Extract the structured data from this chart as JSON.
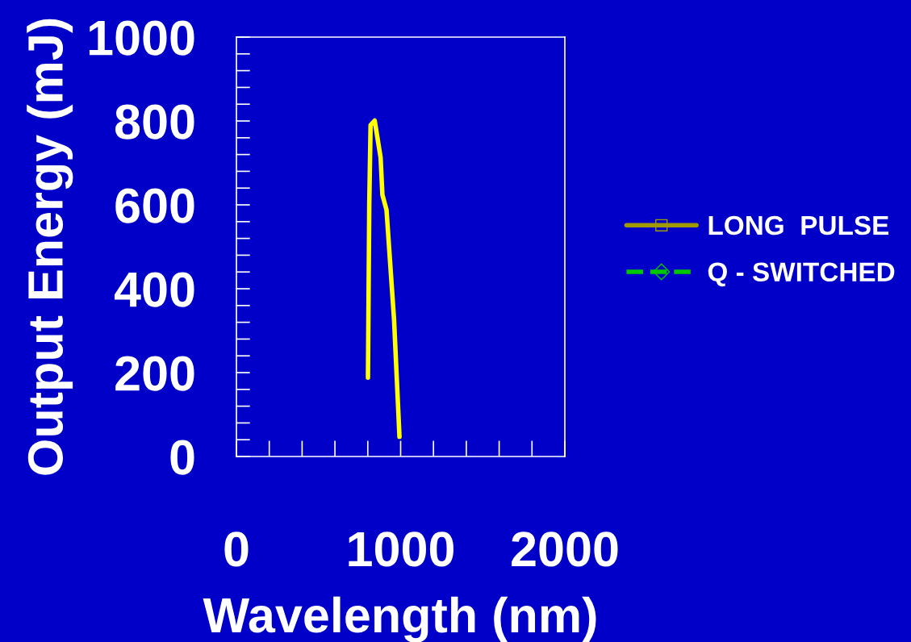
{
  "chart_data": {
    "type": "line",
    "xlabel": "Wavelength (nm)",
    "ylabel": "Output Energy (mJ)",
    "xlim": [
      0,
      2000
    ],
    "ylim": [
      0,
      1000
    ],
    "xticks": [
      0,
      1000,
      2000
    ],
    "yticks": [
      0,
      200,
      400,
      600,
      800,
      1000
    ],
    "grid": false,
    "legend": "right",
    "series": [
      {
        "color": "#ffff00",
        "marker": "none",
        "line_style": "solid",
        "x": [
          801,
          809,
          817,
          842,
          878,
          889,
          914,
          960,
          993
        ],
        "values": [
          188,
          601,
          790,
          801,
          713,
          624,
          588,
          326,
          47
        ]
      },
      {
        "name": "LONG  PULSE",
        "color": "#a09a00",
        "marker": "square",
        "line_style": "solid"
      },
      {
        "name": "Q - SWITCHED",
        "color": "#00c800",
        "marker": "diamond",
        "line_style": "dashed"
      }
    ]
  }
}
